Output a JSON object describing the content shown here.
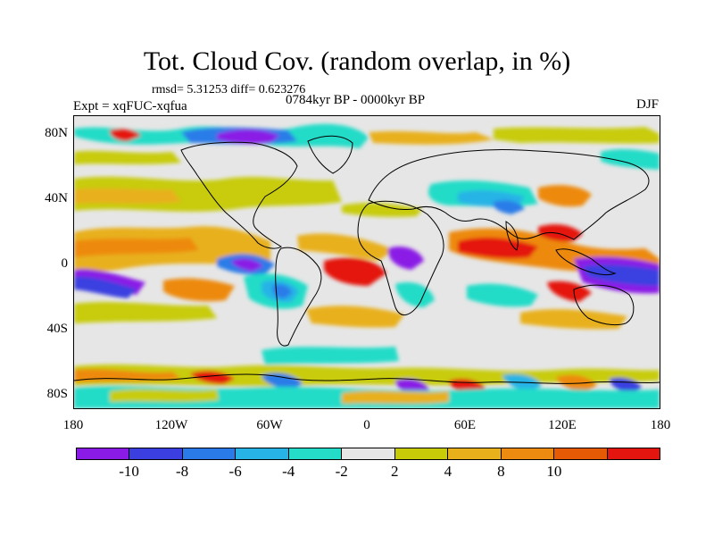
{
  "title": "Tot. Cloud Cov. (random overlap, in %)",
  "stats": "rmsd= 5.31253 diff= 0.623276",
  "expt": "Expt = xqFUC-xqfua",
  "period": "0784kyr BP - 0000kyr BP",
  "season": "DJF",
  "lat_labels": [
    "80N",
    "40N",
    "0",
    "40S",
    "80S"
  ],
  "lon_labels": [
    "180",
    "120W",
    "60W",
    "0",
    "60E",
    "120E",
    "180"
  ],
  "colorbar": {
    "colors": [
      "#8a1be6",
      "#3b3fe0",
      "#2a7be8",
      "#27b3e6",
      "#24dcc8",
      "#e6e6e6",
      "#c8cc08",
      "#e8b01a",
      "#ed8a10",
      "#e55b05",
      "#e4140f"
    ],
    "labels": [
      "-10",
      "-8",
      "-6",
      "-4",
      "-2",
      "2",
      "4",
      "8",
      "10"
    ]
  },
  "colors": {
    "background": "#e6e6e6",
    "coastline": "#000000"
  }
}
